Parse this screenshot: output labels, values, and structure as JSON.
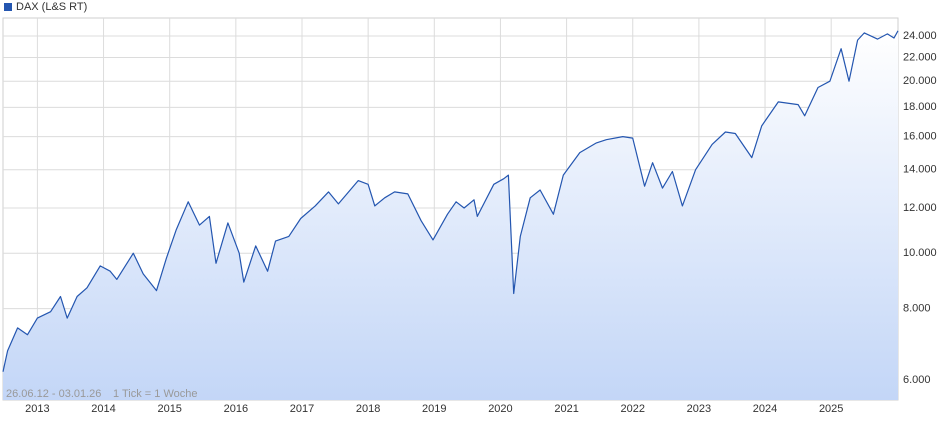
{
  "chart_data": {
    "type": "line",
    "log_scale": true,
    "grid": true,
    "legend_position": "top-left",
    "annotations": [
      "26.06.12 - 03.01.26",
      "1 Tick = 1 Woche"
    ],
    "xlim": [
      2012.48,
      2026.01
    ],
    "xticks": [
      2013,
      2014,
      2015,
      2016,
      2017,
      2018,
      2019,
      2020,
      2021,
      2022,
      2023,
      2024,
      2025
    ],
    "ylim": [
      5535,
      25800
    ],
    "yticks": [
      {
        "value": 6000,
        "label": "6.000"
      },
      {
        "value": 8000,
        "label": "8.000"
      },
      {
        "value": 10000,
        "label": "10.000"
      },
      {
        "value": 12000,
        "label": "12.000"
      },
      {
        "value": 14000,
        "label": "14.000"
      },
      {
        "value": 16000,
        "label": "16.000"
      },
      {
        "value": 18000,
        "label": "18.000"
      },
      {
        "value": 20000,
        "label": "20.000"
      },
      {
        "value": 22000,
        "label": "22.000"
      },
      {
        "value": 24000,
        "label": "24.000"
      }
    ],
    "x": [
      2012.48,
      2012.55,
      2012.7,
      2012.85,
      2013.0,
      2013.2,
      2013.35,
      2013.45,
      2013.6,
      2013.75,
      2013.95,
      2014.1,
      2014.2,
      2014.45,
      2014.6,
      2014.8,
      2014.95,
      2015.1,
      2015.28,
      2015.45,
      2015.6,
      2015.7,
      2015.88,
      2016.05,
      2016.12,
      2016.3,
      2016.48,
      2016.6,
      2016.8,
      2016.98,
      2017.2,
      2017.4,
      2017.55,
      2017.85,
      2018.0,
      2018.1,
      2018.25,
      2018.4,
      2018.6,
      2018.8,
      2018.98,
      2019.2,
      2019.33,
      2019.45,
      2019.6,
      2019.65,
      2019.9,
      2020.05,
      2020.12,
      2020.2,
      2020.3,
      2020.45,
      2020.6,
      2020.8,
      2020.95,
      2021.2,
      2021.45,
      2021.6,
      2021.85,
      2022.0,
      2022.18,
      2022.3,
      2022.45,
      2022.6,
      2022.75,
      2022.95,
      2023.2,
      2023.4,
      2023.55,
      2023.8,
      2023.95,
      2024.2,
      2024.5,
      2024.6,
      2024.8,
      2024.98,
      2025.15,
      2025.27,
      2025.4,
      2025.5,
      2025.7,
      2025.85,
      2025.95,
      2026.01
    ],
    "series": [
      {
        "name": "DAX (L&S RT)",
        "color": "#2456b0",
        "values": [
          6200,
          6750,
          7400,
          7200,
          7700,
          7900,
          8400,
          7700,
          8400,
          8700,
          9500,
          9300,
          9000,
          10000,
          9200,
          8600,
          9800,
          11000,
          12300,
          11200,
          11600,
          9600,
          11300,
          10000,
          8900,
          10300,
          9300,
          10500,
          10700,
          11500,
          12100,
          12800,
          12200,
          13400,
          13200,
          12100,
          12500,
          12800,
          12700,
          11400,
          10550,
          11700,
          12300,
          12000,
          12400,
          11600,
          13200,
          13500,
          13700,
          8500,
          10700,
          12500,
          12900,
          11700,
          13700,
          15000,
          15600,
          15800,
          16000,
          15900,
          13100,
          14400,
          13000,
          13900,
          12100,
          14000,
          15500,
          16300,
          16200,
          14700,
          16700,
          18400,
          18200,
          17400,
          19500,
          20000,
          22800,
          20000,
          23600,
          24300,
          23700,
          24200,
          23800,
          24500
        ]
      }
    ]
  }
}
